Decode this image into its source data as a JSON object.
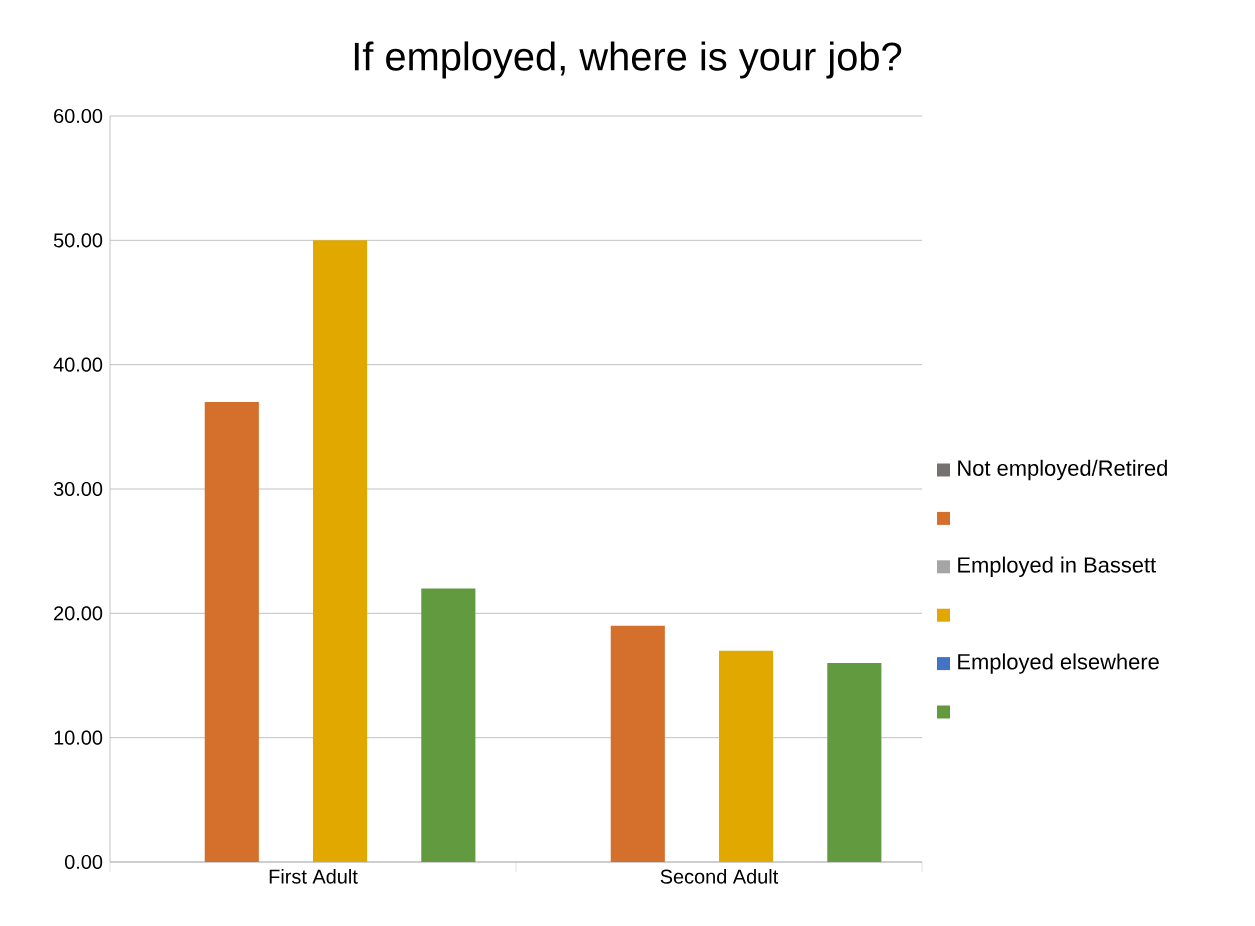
{
  "chart_data": {
    "type": "bar",
    "title": "If employed, where is your job?",
    "categories": [
      "First Adult",
      "Second Adult"
    ],
    "series": [
      {
        "name": "Not employed/Retired",
        "color": "#767171",
        "values": [
          null,
          null
        ]
      },
      {
        "color": "#d4702b",
        "values": [
          37,
          19
        ]
      },
      {
        "name": "Employed in Bassett",
        "color": "#a5a5a5",
        "values": [
          null,
          null
        ]
      },
      {
        "color": "#e1a900",
        "values": [
          50,
          17
        ]
      },
      {
        "name": "Employed elsewhere",
        "color": "#4472c4",
        "values": [
          null,
          null
        ]
      },
      {
        "color": "#629a3f",
        "values": [
          22,
          16
        ]
      }
    ],
    "ylim": [
      0,
      60
    ],
    "yticks": [
      {
        "value": 0,
        "label": "0.00"
      },
      {
        "value": 10,
        "label": "10.00"
      },
      {
        "value": 20,
        "label": "20.00"
      },
      {
        "value": 30,
        "label": "30.00"
      },
      {
        "value": 40,
        "label": "40.00"
      },
      {
        "value": 50,
        "label": "50.00"
      },
      {
        "value": 60,
        "label": "60.00"
      }
    ],
    "grid": "y",
    "legend": "right"
  }
}
